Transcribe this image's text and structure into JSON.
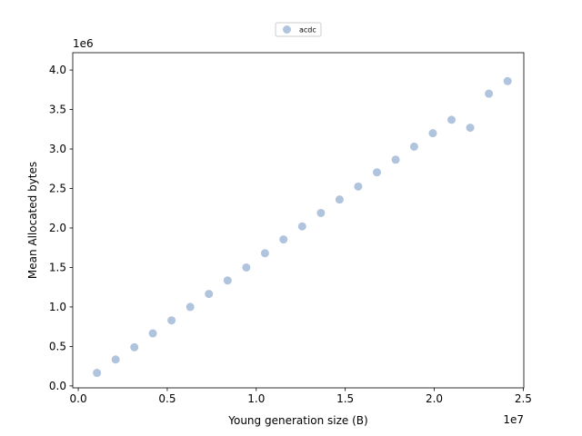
{
  "chart_data": {
    "type": "scatter",
    "title": "",
    "xlabel": "Young generation size (B)",
    "ylabel": "Mean Allocated bytes",
    "x_offset_label": "1e7",
    "y_offset_label": "1e6",
    "xlim": [
      0,
      25000000
    ],
    "ylim": [
      0,
      4000000
    ],
    "x_ticks": [
      0,
      5000000,
      10000000,
      15000000,
      20000000,
      25000000
    ],
    "x_tick_labels": [
      "0.0",
      "0.5",
      "1.0",
      "1.5",
      "2.0",
      "2.5"
    ],
    "y_ticks": [
      0,
      500000,
      1000000,
      1500000,
      2000000,
      2500000,
      3000000,
      3500000,
      4000000
    ],
    "y_tick_labels": [
      "0.0",
      "0.5",
      "1.0",
      "1.5",
      "2.0",
      "2.5",
      "3.0",
      "3.5",
      "4.0"
    ],
    "grid": false,
    "legend_position": "top-center",
    "series": [
      {
        "name": "acdc",
        "color": "#b0c4de",
        "x": [
          1050000,
          2100000,
          3150000,
          4190000,
          5240000,
          6290000,
          7340000,
          8390000,
          9440000,
          10490000,
          11530000,
          12580000,
          13630000,
          14680000,
          15730000,
          16780000,
          17830000,
          18870000,
          19920000,
          20970000,
          22020000,
          23070000,
          24120000
        ],
        "y": [
          165000,
          335000,
          490000,
          665000,
          830000,
          1000000,
          1165000,
          1335000,
          1500000,
          1680000,
          1855000,
          2020000,
          2190000,
          2360000,
          2525000,
          2705000,
          2865000,
          3030000,
          3200000,
          3370000,
          3270000,
          3700000,
          3860000
        ]
      }
    ]
  }
}
